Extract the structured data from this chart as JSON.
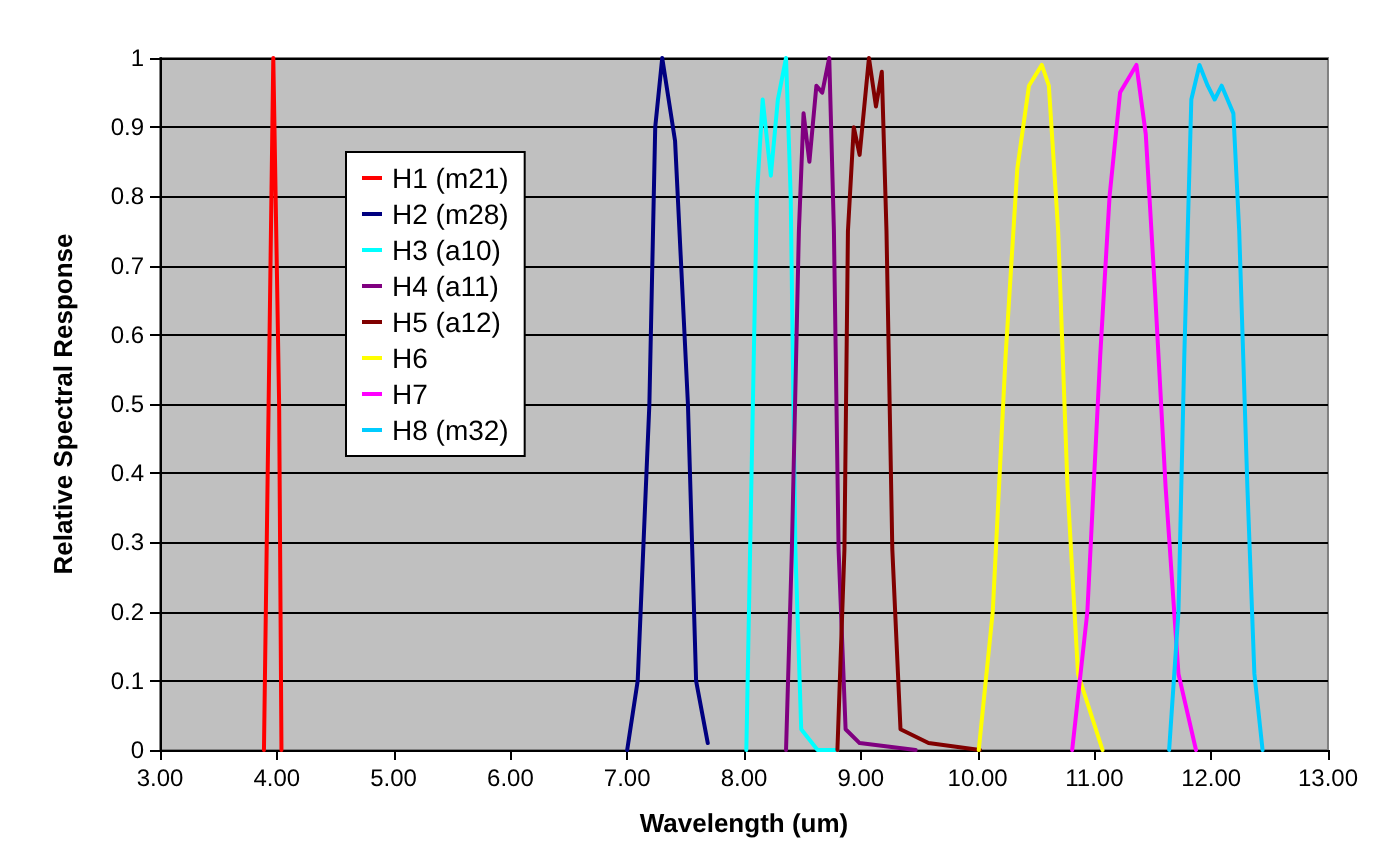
{
  "chart_data": {
    "type": "line",
    "xlabel": "Wavelength (um)",
    "ylabel": "Relative Spectral Response",
    "xlim": [
      3,
      13
    ],
    "xticks": [
      {
        "value": 3,
        "label": "3.00"
      },
      {
        "value": 4,
        "label": "4.00"
      },
      {
        "value": 5,
        "label": "5.00"
      },
      {
        "value": 6,
        "label": "6.00"
      },
      {
        "value": 7,
        "label": "7.00"
      },
      {
        "value": 8,
        "label": "8.00"
      },
      {
        "value": 9,
        "label": "9.00"
      },
      {
        "value": 10,
        "label": "10.00"
      },
      {
        "value": 11,
        "label": "11.00"
      },
      {
        "value": 12,
        "label": "12.00"
      },
      {
        "value": 13,
        "label": "13.00"
      }
    ],
    "ylim": [
      0,
      1
    ],
    "yticks": [
      0,
      0.1,
      0.2,
      0.3,
      0.4,
      0.5,
      0.6,
      0.7,
      0.8,
      0.9,
      1
    ],
    "grid": "y",
    "legend": "top left",
    "marker": "none",
    "line_style": "solid",
    "series": [
      {
        "name": "H1 (m21)",
        "color": "#ff0000",
        "x": [
          3.89,
          3.93,
          3.97,
          4.02,
          4.04
        ],
        "values": [
          0,
          0.5,
          1,
          0.5,
          0
        ]
      },
      {
        "name": "H2 (m28)",
        "color": "#000080",
        "x": [
          7.0,
          7.09,
          7.19,
          7.24,
          7.3,
          7.41,
          7.52,
          7.59,
          7.69
        ],
        "values": [
          0,
          0.1,
          0.5,
          0.9,
          1,
          0.88,
          0.5,
          0.1,
          0.01
        ]
      },
      {
        "name": "H3 (a10)",
        "color": "#00ffff",
        "x": [
          8.02,
          8.11,
          8.16,
          8.23,
          8.29,
          8.36,
          8.4,
          8.44,
          8.49,
          8.63,
          8.8
        ],
        "values": [
          0,
          0.8,
          0.94,
          0.83,
          0.94,
          1,
          0.8,
          0.29,
          0.03,
          0,
          0
        ]
      },
      {
        "name": "H4 (a11)",
        "color": "#800080",
        "x": [
          8.36,
          8.41,
          8.47,
          8.51,
          8.56,
          8.62,
          8.67,
          8.73,
          8.77,
          8.81,
          8.87,
          8.99,
          9.47
        ],
        "values": [
          0,
          0.29,
          0.75,
          0.92,
          0.85,
          0.96,
          0.95,
          1,
          0.75,
          0.29,
          0.03,
          0.01,
          0
        ]
      },
      {
        "name": "H5 (a12)",
        "color": "#800000",
        "x": [
          8.8,
          8.86,
          8.89,
          8.94,
          8.99,
          9.07,
          9.13,
          9.18,
          9.22,
          9.27,
          9.34,
          9.58,
          10.02
        ],
        "values": [
          0,
          0.29,
          0.75,
          0.9,
          0.86,
          1,
          0.93,
          0.98,
          0.75,
          0.29,
          0.03,
          0.01,
          0
        ]
      },
      {
        "name": "H6",
        "color": "#ffff00",
        "x": [
          10.01,
          10.13,
          10.24,
          10.34,
          10.44,
          10.55,
          10.61,
          10.69,
          10.77,
          10.86,
          11.07
        ],
        "values": [
          0,
          0.2,
          0.57,
          0.84,
          0.96,
          0.99,
          0.96,
          0.75,
          0.38,
          0.11,
          0
        ]
      },
      {
        "name": "H7",
        "color": "#ff00ff",
        "x": [
          10.81,
          10.94,
          11.05,
          11.13,
          11.22,
          11.36,
          11.44,
          11.52,
          11.61,
          11.72,
          11.87
        ],
        "values": [
          0,
          0.2,
          0.57,
          0.8,
          0.95,
          0.99,
          0.89,
          0.66,
          0.38,
          0.11,
          0
        ]
      },
      {
        "name": "H8 (m32)",
        "color": "#00ccff",
        "x": [
          11.64,
          11.72,
          11.77,
          11.83,
          11.9,
          11.97,
          12.03,
          12.09,
          12.19,
          12.24,
          12.31,
          12.37,
          12.44
        ],
        "values": [
          0,
          0.2,
          0.57,
          0.94,
          0.99,
          0.96,
          0.94,
          0.96,
          0.92,
          0.75,
          0.38,
          0.11,
          0
        ]
      }
    ]
  }
}
